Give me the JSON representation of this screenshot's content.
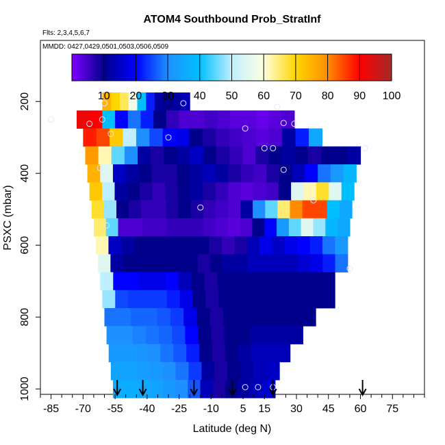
{
  "chart_data": {
    "type": "heatmap",
    "title": "ATOM4 Southbound Prob_StratInf",
    "subtitle_flights": "Flts: 2,3,4,5,6,7",
    "subtitle_dates": "MMDD: 0427,0429,0501,0503,0506,0509",
    "xlabel": "Latitude (deg N)",
    "ylabel": "PSXC (mbar)",
    "xlim": [
      -90,
      90
    ],
    "ylim": [
      1015,
      30
    ],
    "x_ticks": [
      -85,
      -70,
      -55,
      -40,
      -25,
      -10,
      5,
      15,
      30,
      45,
      60,
      75
    ],
    "y_ticks": [
      200,
      400,
      600,
      800,
      1000
    ],
    "colorbar": {
      "ticks": [
        10,
        20,
        30,
        40,
        50,
        60,
        70,
        80,
        90,
        100
      ],
      "range": [
        0,
        100
      ],
      "colors": [
        "#7f00ff",
        "#00008b",
        "#0000ff",
        "#1e90ff",
        "#00bfff",
        "#bfefff",
        "#ffffe0",
        "#ffd700",
        "#ff8c00",
        "#ff0000",
        "#a52a2a"
      ]
    },
    "arrows_lat": [
      -54,
      -42,
      -18,
      0,
      19,
      61
    ],
    "layers": [
      {
        "p": 200,
        "lat": [
          -61,
          -20
        ],
        "values": [
          75,
          70,
          66,
          58,
          40,
          22,
          12,
          10,
          12,
          14
        ]
      },
      {
        "p": 250,
        "lat": [
          -73,
          29
        ],
        "values": [
          92,
          90,
          40,
          20,
          28,
          22,
          10,
          6,
          4,
          4,
          5,
          4,
          3,
          3,
          2,
          3,
          4
        ]
      },
      {
        "p": 300,
        "lat": [
          -70,
          42
        ],
        "values": [
          88,
          85,
          72,
          50,
          30,
          25,
          20,
          18,
          10,
          8,
          6,
          5,
          4,
          3,
          4,
          12,
          22,
          35
        ]
      },
      {
        "p": 350,
        "lat": [
          -69,
          60
        ],
        "values": [
          78,
          62,
          45,
          30,
          12,
          8,
          10,
          12,
          15,
          10,
          8,
          6,
          4,
          8,
          10,
          12,
          10,
          8,
          10,
          10,
          12
        ]
      },
      {
        "p": 400,
        "lat": [
          -68,
          58
        ],
        "values": [
          75,
          55,
          15,
          12,
          10,
          8,
          8,
          10,
          12,
          14,
          12,
          8,
          6,
          5,
          8,
          10,
          14,
          20,
          28,
          32,
          38
        ]
      },
      {
        "p": 450,
        "lat": [
          -67,
          57
        ],
        "values": [
          72,
          50,
          12,
          10,
          8,
          6,
          8,
          10,
          12,
          8,
          6,
          4,
          3,
          4,
          5,
          10,
          55,
          62,
          68,
          55,
          40
        ]
      },
      {
        "p": 500,
        "lat": [
          -66,
          56
        ],
        "values": [
          68,
          48,
          10,
          8,
          6,
          6,
          8,
          10,
          8,
          6,
          5,
          4,
          12,
          30,
          45,
          65,
          80,
          85,
          85,
          40,
          35
        ]
      },
      {
        "p": 550,
        "lat": [
          -65,
          55
        ],
        "values": [
          65,
          45,
          4,
          4,
          5,
          5,
          6,
          6,
          6,
          5,
          4,
          3,
          4,
          10,
          20,
          32,
          45,
          55,
          48,
          38,
          35
        ]
      },
      {
        "p": 600,
        "lat": [
          -64,
          54
        ],
        "values": [
          62,
          15,
          12,
          10,
          10,
          10,
          10,
          10,
          10,
          8,
          6,
          8,
          14,
          18,
          15,
          18,
          20,
          22,
          28,
          32
        ]
      },
      {
        "p": 650,
        "lat": [
          -63,
          54
        ],
        "values": [
          55,
          12,
          10,
          10,
          10,
          10,
          10,
          10,
          8,
          10,
          12,
          12,
          14,
          14,
          14,
          14,
          16,
          18,
          22,
          28
        ]
      },
      {
        "p": 700,
        "lat": [
          -62,
          48
        ],
        "values": [
          50,
          20,
          20,
          18,
          18,
          20,
          14,
          10,
          8,
          10,
          10,
          10,
          10,
          10,
          10,
          10,
          10,
          10
        ]
      },
      {
        "p": 750,
        "lat": [
          -61,
          48
        ],
        "values": [
          48,
          25,
          24,
          24,
          24,
          22,
          18,
          10,
          8,
          10,
          10,
          10,
          10,
          10,
          10,
          10,
          10,
          10
        ]
      },
      {
        "p": 800,
        "lat": [
          -60,
          39
        ],
        "values": [
          28,
          28,
          27,
          27,
          26,
          24,
          18,
          10,
          8,
          10,
          10,
          10,
          10,
          10,
          10,
          10
        ]
      },
      {
        "p": 850,
        "lat": [
          -59,
          33
        ],
        "values": [
          30,
          30,
          29,
          28,
          27,
          25,
          20,
          10,
          8,
          10,
          10,
          12,
          12,
          12,
          12
        ]
      },
      {
        "p": 900,
        "lat": [
          -58,
          27
        ],
        "values": [
          32,
          32,
          31,
          30,
          28,
          26,
          22,
          10,
          8,
          10,
          12,
          14,
          14,
          14
        ]
      },
      {
        "p": 950,
        "lat": [
          -57,
          22
        ],
        "values": [
          34,
          34,
          33,
          32,
          30,
          28,
          24,
          12,
          8,
          10,
          12,
          14,
          15
        ]
      },
      {
        "p": 1000,
        "lat": [
          -56,
          20
        ],
        "values": [
          36,
          36,
          35,
          34,
          32,
          30,
          26,
          14,
          8,
          10,
          12,
          14,
          16
        ]
      }
    ],
    "points": [
      {
        "lat": -60,
        "p": 205
      },
      {
        "lat": -23,
        "p": 205
      },
      {
        "lat": 21,
        "p": 215
      },
      {
        "lat": -85,
        "p": 250
      },
      {
        "lat": -61,
        "p": 250
      },
      {
        "lat": 24,
        "p": 260
      },
      {
        "lat": 29,
        "p": 262
      },
      {
        "lat": -67,
        "p": 262
      },
      {
        "lat": 6,
        "p": 275
      },
      {
        "lat": -57,
        "p": 290
      },
      {
        "lat": -48,
        "p": 290
      },
      {
        "lat": -30,
        "p": 300
      },
      {
        "lat": 15,
        "p": 330
      },
      {
        "lat": 19,
        "p": 330
      },
      {
        "lat": 62,
        "p": 330
      },
      {
        "lat": -62,
        "p": 385
      },
      {
        "lat": 24,
        "p": 390
      },
      {
        "lat": 38,
        "p": 475
      },
      {
        "lat": -15,
        "p": 495
      },
      {
        "lat": -59,
        "p": 545
      },
      {
        "lat": 55,
        "p": 665
      },
      {
        "lat": 6,
        "p": 995
      },
      {
        "lat": 12,
        "p": 995
      },
      {
        "lat": 19,
        "p": 995
      }
    ]
  }
}
